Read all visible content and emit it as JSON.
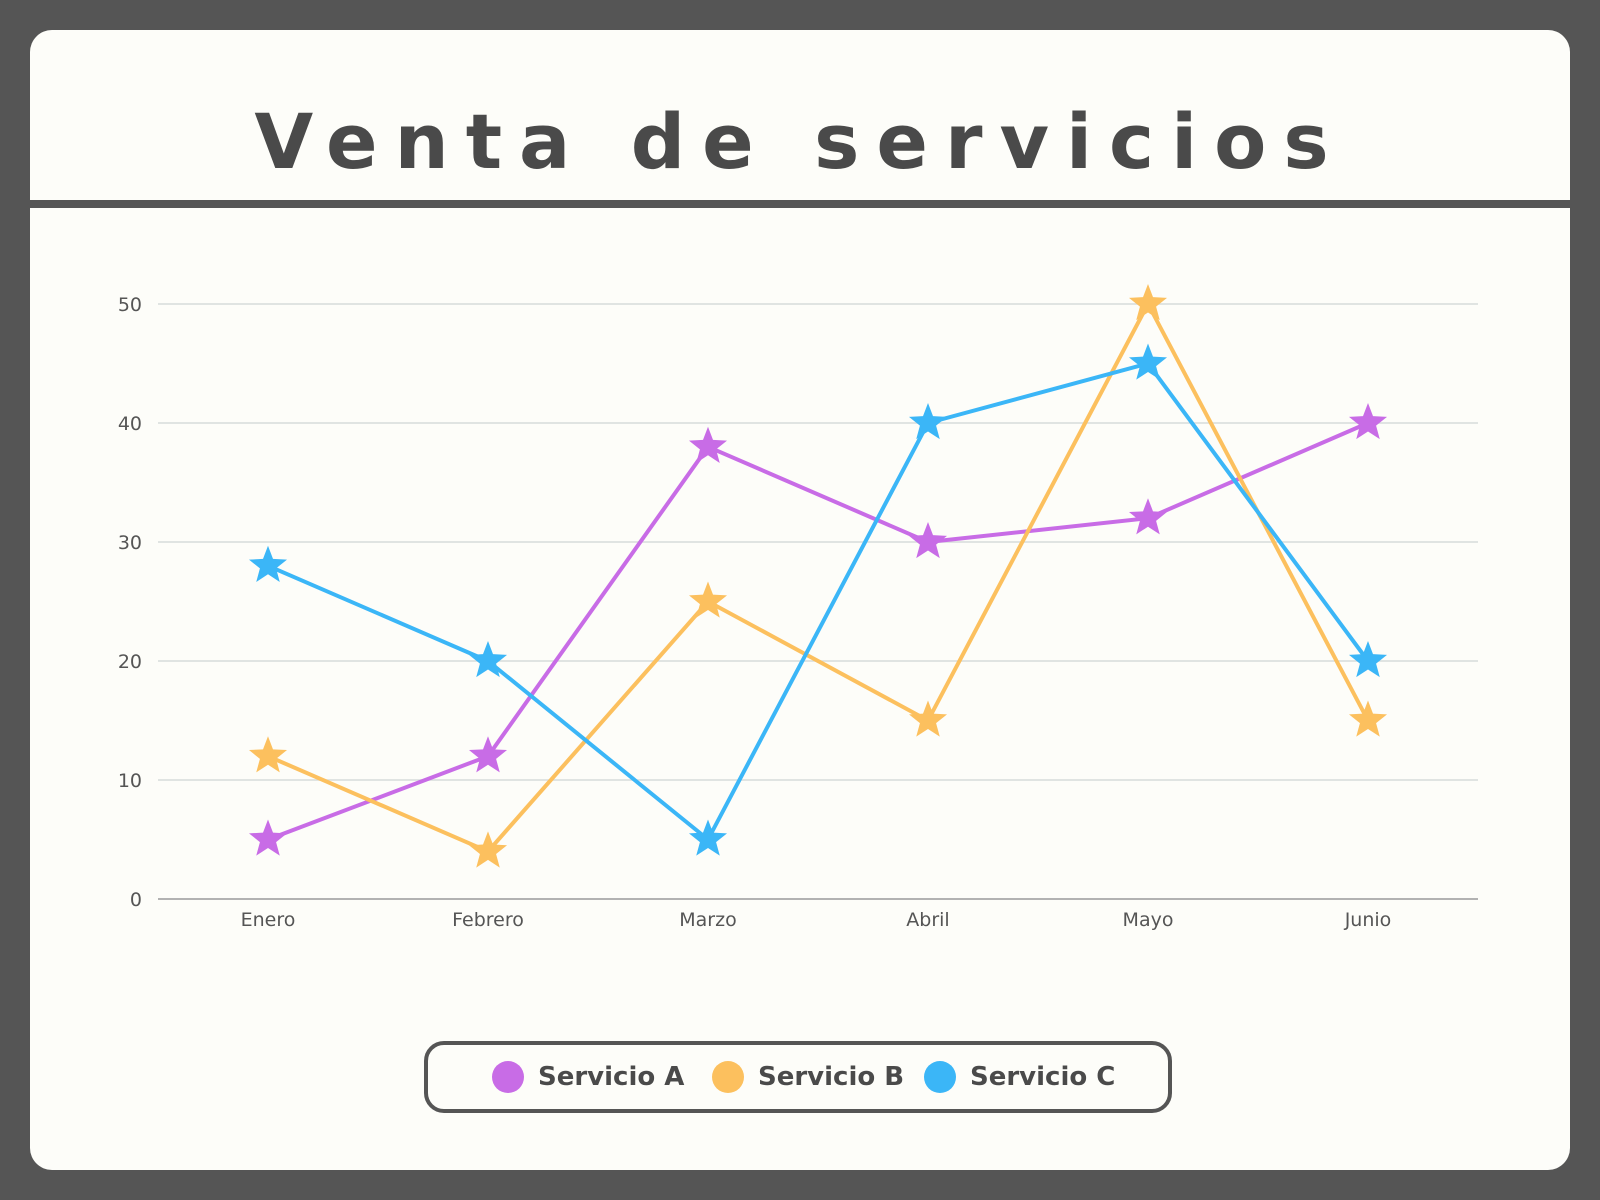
{
  "title": "Venta de servicios",
  "colors": {
    "frame": "#555555",
    "card": "#FDFDF9",
    "text": "#4A4A4A",
    "grid": "#D6DBDB"
  },
  "legend": {
    "items": [
      {
        "label": "Servicio A",
        "color": "#C86CE6"
      },
      {
        "label": "Servicio B",
        "color": "#FCC05E"
      },
      {
        "label": "Servicio C",
        "color": "#3BB6F7"
      }
    ]
  },
  "chart_data": {
    "type": "line",
    "title": "Venta de servicios",
    "xlabel": "",
    "ylabel": "",
    "categories": [
      "Enero",
      "Febrero",
      "Marzo",
      "Abril",
      "Mayo",
      "Junio"
    ],
    "ylim": [
      0,
      50
    ],
    "yticks": [
      0,
      10,
      20,
      30,
      40,
      50
    ],
    "grid": true,
    "legend_position": "bottom",
    "marker": "star",
    "series": [
      {
        "name": "Servicio A",
        "color": "#C86CE6",
        "values": [
          5,
          12,
          38,
          30,
          32,
          40
        ]
      },
      {
        "name": "Servicio B",
        "color": "#FCC05E",
        "values": [
          12,
          4,
          25,
          15,
          50,
          15
        ]
      },
      {
        "name": "Servicio C",
        "color": "#3BB6F7",
        "values": [
          28,
          20,
          5,
          40,
          45,
          20
        ]
      }
    ]
  }
}
